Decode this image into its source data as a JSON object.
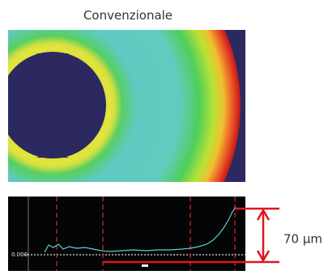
{
  "title": "Convenzionale",
  "profile": {
    "axis_label": "0.000"
  },
  "annotation": "70 µm"
}
